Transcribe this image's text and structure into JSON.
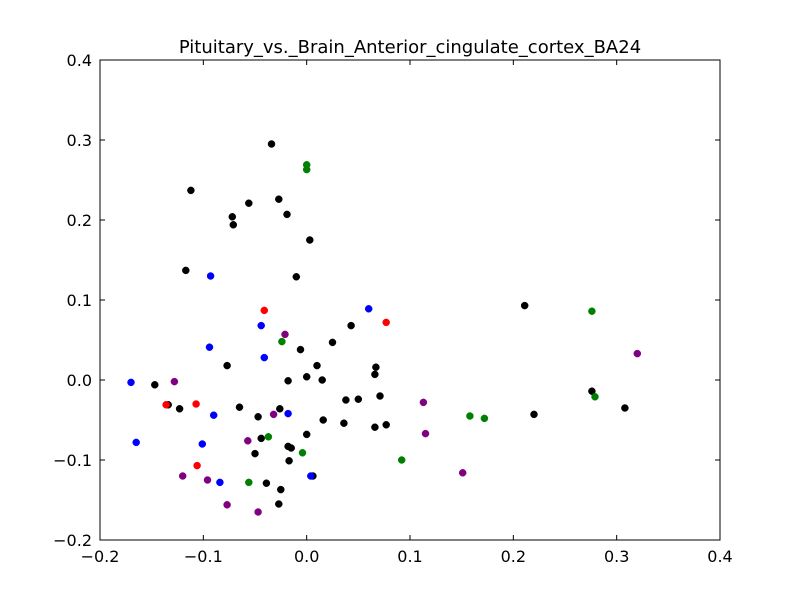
{
  "chart_data": {
    "type": "scatter",
    "title": "Pituitary_vs._Brain_Anterior_cingulate_cortex_BA24",
    "xlabel": "",
    "ylabel": "",
    "xlim": [
      -0.2,
      0.4
    ],
    "ylim": [
      -0.2,
      0.4
    ],
    "xticks": [
      -0.2,
      -0.1,
      0.0,
      0.1,
      0.2,
      0.3,
      0.4
    ],
    "yticks": [
      -0.2,
      -0.1,
      0.0,
      0.1,
      0.2,
      0.3,
      0.4
    ],
    "xtick_labels": [
      "−0.2",
      "−0.1",
      "0.0",
      "0.1",
      "0.2",
      "0.3",
      "0.4"
    ],
    "ytick_labels": [
      "−0.2",
      "−0.1",
      "0.0",
      "0.1",
      "0.2",
      "0.3",
      "0.4"
    ],
    "grid": false,
    "series": [
      {
        "color": "#000000",
        "points": [
          [
            -0.034,
            0.295
          ],
          [
            -0.112,
            0.237
          ],
          [
            -0.056,
            0.221
          ],
          [
            -0.027,
            0.226
          ],
          [
            -0.072,
            0.204
          ],
          [
            -0.019,
            0.207
          ],
          [
            -0.071,
            0.194
          ],
          [
            0.003,
            0.175
          ],
          [
            -0.117,
            0.137
          ],
          [
            -0.01,
            0.129
          ],
          [
            0.211,
            0.093
          ],
          [
            0.043,
            0.068
          ],
          [
            0.025,
            0.047
          ],
          [
            -0.006,
            0.038
          ],
          [
            -0.077,
            0.018
          ],
          [
            0.01,
            0.018
          ],
          [
            0.067,
            0.016
          ],
          [
            0.066,
            0.007
          ],
          [
            0.0,
            0.004
          ],
          [
            0.015,
            0.0
          ],
          [
            -0.018,
            -0.001
          ],
          [
            -0.147,
            -0.006
          ],
          [
            0.276,
            -0.014
          ],
          [
            0.071,
            -0.02
          ],
          [
            0.05,
            -0.024
          ],
          [
            0.038,
            -0.025
          ],
          [
            -0.134,
            -0.031
          ],
          [
            -0.123,
            -0.036
          ],
          [
            -0.065,
            -0.034
          ],
          [
            -0.026,
            -0.036
          ],
          [
            0.308,
            -0.035
          ],
          [
            0.22,
            -0.043
          ],
          [
            -0.047,
            -0.046
          ],
          [
            0.016,
            -0.05
          ],
          [
            0.036,
            -0.054
          ],
          [
            0.077,
            -0.056
          ],
          [
            0.066,
            -0.059
          ],
          [
            0.0,
            -0.068
          ],
          [
            -0.044,
            -0.073
          ],
          [
            -0.018,
            -0.083
          ],
          [
            -0.015,
            -0.085
          ],
          [
            -0.05,
            -0.092
          ],
          [
            -0.017,
            -0.101
          ],
          [
            0.006,
            -0.12
          ],
          [
            -0.039,
            -0.129
          ],
          [
            -0.025,
            -0.137
          ],
          [
            -0.027,
            -0.155
          ]
        ]
      },
      {
        "color": "#0000ff",
        "points": [
          [
            -0.093,
            0.13
          ],
          [
            0.06,
            0.089
          ],
          [
            -0.044,
            0.068
          ],
          [
            -0.094,
            0.041
          ],
          [
            -0.041,
            0.028
          ],
          [
            -0.17,
            -0.003
          ],
          [
            -0.018,
            -0.042
          ],
          [
            -0.09,
            -0.044
          ],
          [
            -0.165,
            -0.078
          ],
          [
            -0.101,
            -0.08
          ],
          [
            0.004,
            -0.12
          ],
          [
            -0.084,
            -0.128
          ]
        ]
      },
      {
        "color": "#ff0000",
        "points": [
          [
            -0.041,
            0.087
          ],
          [
            0.077,
            0.072
          ],
          [
            -0.136,
            -0.031
          ],
          [
            -0.107,
            -0.03
          ],
          [
            -0.106,
            -0.107
          ]
        ]
      },
      {
        "color": "#800080",
        "points": [
          [
            0.32,
            0.033
          ],
          [
            -0.021,
            0.057
          ],
          [
            -0.128,
            -0.002
          ],
          [
            0.113,
            -0.028
          ],
          [
            -0.032,
            -0.043
          ],
          [
            0.115,
            -0.067
          ],
          [
            -0.057,
            -0.076
          ],
          [
            0.151,
            -0.116
          ],
          [
            -0.12,
            -0.12
          ],
          [
            -0.096,
            -0.125
          ],
          [
            -0.077,
            -0.156
          ],
          [
            -0.047,
            -0.165
          ]
        ]
      },
      {
        "color": "#008000",
        "points": [
          [
            0.0,
            0.269
          ],
          [
            0.0,
            0.263
          ],
          [
            0.276,
            0.086
          ],
          [
            -0.024,
            0.048
          ],
          [
            0.279,
            -0.021
          ],
          [
            0.158,
            -0.045
          ],
          [
            0.172,
            -0.048
          ],
          [
            -0.037,
            -0.071
          ],
          [
            -0.004,
            -0.091
          ],
          [
            0.092,
            -0.1
          ],
          [
            -0.056,
            -0.128
          ]
        ]
      }
    ]
  }
}
